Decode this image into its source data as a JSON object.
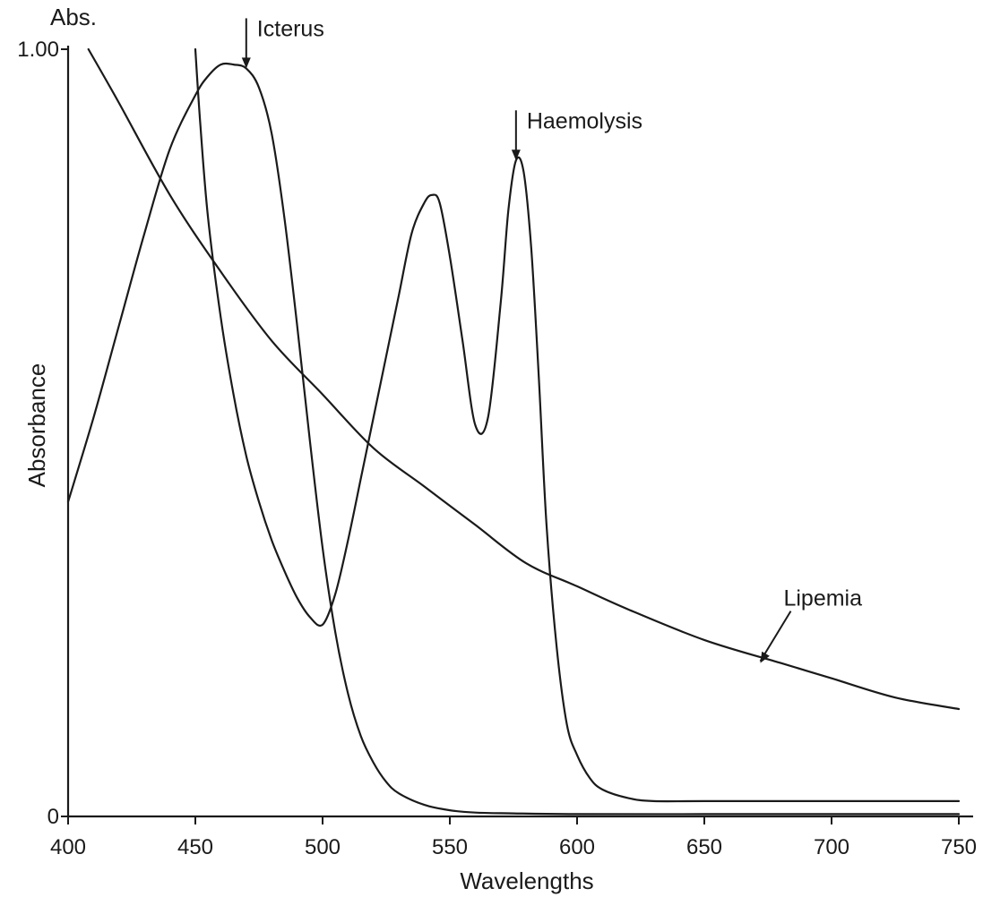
{
  "chart_data": {
    "type": "line",
    "title": "",
    "xlabel": "Wavelengths",
    "ylabel": "Absorbance",
    "y_unit_label": "Abs.",
    "xlim": [
      400,
      750
    ],
    "ylim": [
      0,
      1.0
    ],
    "x_ticks": [
      400,
      450,
      500,
      550,
      600,
      650,
      700,
      750
    ],
    "x_tick_labels": [
      "400",
      "450",
      "500",
      "550",
      "600",
      "650",
      "700",
      "750"
    ],
    "y_ticks": [
      0,
      1.0
    ],
    "y_tick_labels": [
      "0",
      "1.00"
    ],
    "grid": false,
    "legend": "none",
    "series": [
      {
        "id": "icterus",
        "x": [
          400,
          410,
          420,
          430,
          440,
          450,
          455,
          460,
          465,
          470,
          475,
          480,
          485,
          490,
          495,
          500,
          505,
          510,
          515,
          520,
          525,
          530,
          540,
          550,
          560,
          575,
          600,
          650,
          700,
          750
        ],
        "y": [
          0.41,
          0.52,
          0.64,
          0.76,
          0.87,
          0.94,
          0.965,
          0.98,
          0.98,
          0.975,
          0.95,
          0.89,
          0.78,
          0.64,
          0.49,
          0.35,
          0.24,
          0.16,
          0.105,
          0.07,
          0.045,
          0.03,
          0.015,
          0.008,
          0.005,
          0.004,
          0.003,
          0.003,
          0.003,
          0.003
        ]
      },
      {
        "id": "haemolysis",
        "x": [
          450,
          452,
          455,
          460,
          465,
          470,
          475,
          480,
          485,
          490,
          495,
          500,
          505,
          510,
          515,
          520,
          525,
          530,
          535,
          540,
          543,
          546,
          550,
          555,
          560,
          565,
          570,
          573,
          576,
          579,
          582,
          585,
          588,
          592,
          596,
          600,
          605,
          610,
          620,
          630,
          650,
          700,
          750
        ],
        "y": [
          1.0,
          0.9,
          0.78,
          0.65,
          0.55,
          0.47,
          0.41,
          0.36,
          0.32,
          0.285,
          0.26,
          0.25,
          0.29,
          0.36,
          0.44,
          0.52,
          0.6,
          0.68,
          0.76,
          0.8,
          0.81,
          0.8,
          0.73,
          0.62,
          0.51,
          0.52,
          0.67,
          0.79,
          0.855,
          0.84,
          0.74,
          0.57,
          0.38,
          0.22,
          0.12,
          0.08,
          0.05,
          0.035,
          0.024,
          0.02,
          0.02,
          0.02,
          0.02
        ]
      },
      {
        "id": "lipemia",
        "x": [
          408,
          420,
          440,
          460,
          480,
          500,
          520,
          540,
          560,
          580,
          600,
          620,
          650,
          680,
          700,
          725,
          750
        ],
        "y": [
          1.0,
          0.93,
          0.81,
          0.71,
          0.62,
          0.55,
          0.48,
          0.43,
          0.38,
          0.33,
          0.3,
          0.27,
          0.23,
          0.2,
          0.18,
          0.155,
          0.14
        ]
      }
    ],
    "annotations": [
      {
        "id": "icterus",
        "text": "Icterus",
        "arrow_style": "vertical",
        "points_to": [
          470,
          0.975
        ]
      },
      {
        "id": "haemolysis",
        "text": "Haemolysis",
        "arrow_style": "vertical",
        "points_to": [
          576,
          0.855
        ]
      },
      {
        "id": "lipemia",
        "text": "Lipemia",
        "arrow_style": "diagonal",
        "points_to": [
          672,
          0.2
        ]
      }
    ]
  }
}
